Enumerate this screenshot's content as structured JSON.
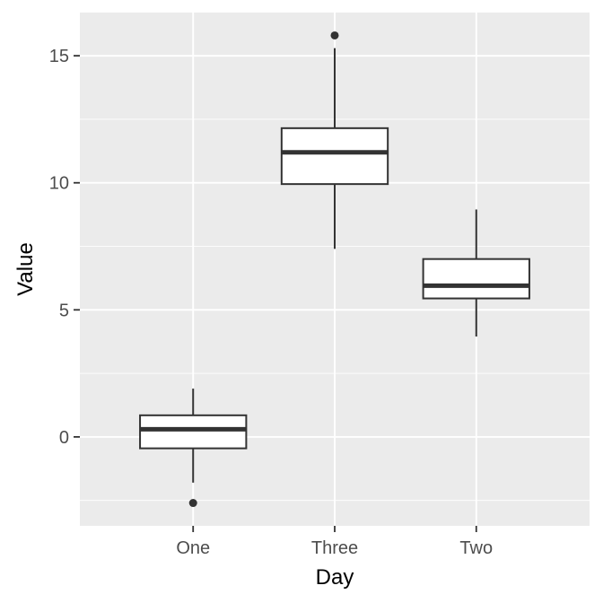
{
  "chart_data": {
    "type": "box",
    "xlabel": "Day",
    "ylabel": "Value",
    "categories": [
      "One",
      "Three",
      "Two"
    ],
    "ylim": [
      -3.5,
      16.7
    ],
    "yticks": [
      0,
      5,
      10,
      15
    ],
    "ytick_labels": [
      "0",
      "5",
      "10",
      "15"
    ],
    "grid": true,
    "legend": "none",
    "boxes": [
      {
        "category": "One",
        "whisker_low": -1.8,
        "q1": -0.45,
        "median": 0.3,
        "q3": 0.85,
        "whisker_high": 1.9,
        "outliers": [
          -2.6
        ]
      },
      {
        "category": "Three",
        "whisker_low": 7.4,
        "q1": 9.95,
        "median": 11.2,
        "q3": 12.15,
        "whisker_high": 15.3,
        "outliers": [
          15.8
        ]
      },
      {
        "category": "Two",
        "whisker_low": 3.95,
        "q1": 5.45,
        "median": 5.95,
        "q3": 7.0,
        "whisker_high": 8.95,
        "outliers": []
      }
    ],
    "colors": {
      "panel": "#EBEBEB",
      "grid": "#FFFFFF",
      "box_fill": "#FFFFFF",
      "box_line": "#333333",
      "tick_text": "#4D4D4D",
      "title_text": "#000000"
    }
  }
}
